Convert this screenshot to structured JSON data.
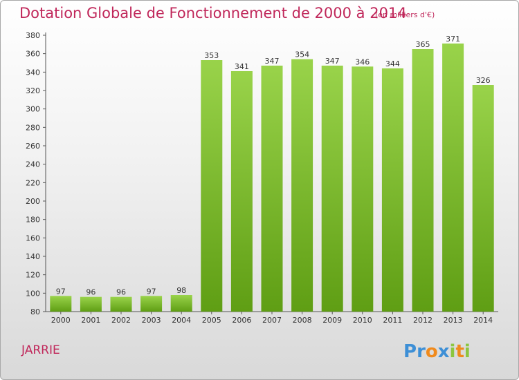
{
  "chart_data": {
    "type": "bar",
    "title": "Dotation Globale de Fonctionnement de 2000 à 2014",
    "subtitle": "(en milliers d'€)",
    "categories": [
      "2000",
      "2001",
      "2002",
      "2003",
      "2004",
      "2005",
      "2006",
      "2007",
      "2008",
      "2009",
      "2010",
      "2011",
      "2012",
      "2013",
      "2014"
    ],
    "values": [
      97,
      96,
      96,
      97,
      98,
      353,
      341,
      347,
      354,
      347,
      346,
      344,
      365,
      371,
      326
    ],
    "data_labels": [
      "97",
      "96",
      "96",
      "97",
      "98",
      "353",
      "341",
      "347",
      "354",
      "347",
      "346",
      "344",
      "365",
      "371",
      "326"
    ],
    "y_ticks": [
      "80",
      "100",
      "120",
      "140",
      "160",
      "180",
      "200",
      "220",
      "240",
      "260",
      "280",
      "300",
      "320",
      "340",
      "360",
      "380"
    ],
    "ylim": [
      80,
      380
    ],
    "grid": false,
    "bar_color_top": "#99d34a",
    "bar_color_bottom": "#5f9e14"
  },
  "footer": {
    "commune": "JARRIE",
    "logo_text": "Proxiti"
  },
  "colors": {
    "title": "#c0275a",
    "logo_p": "#3d8fd6",
    "logo_r": "#3d8fd6",
    "logo_o": "#f08a1c",
    "logo_x": "#3d8fd6",
    "logo_i": "#8cc63f",
    "logo_t": "#f08a1c"
  }
}
